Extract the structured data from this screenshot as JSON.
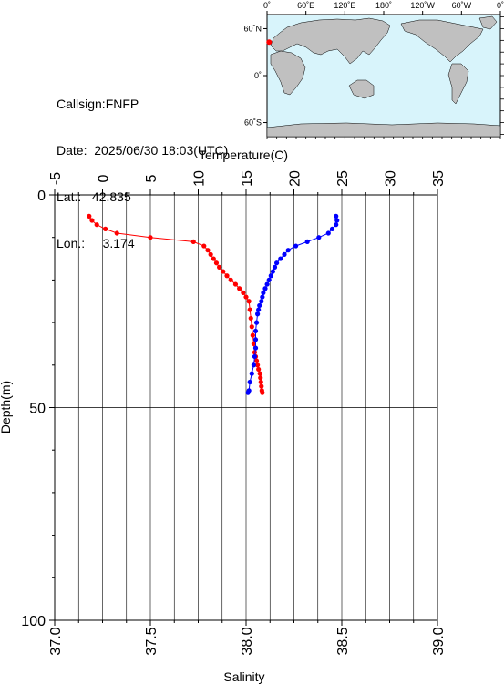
{
  "header": {
    "callsign_label": "Callsign:",
    "callsign": "FNFP",
    "date_label": "Date:",
    "date": "2025/06/30 18:03(UTC)",
    "lat_label": "Lat.:",
    "lat": "42.835",
    "lon_label": "Lon.:",
    "lon": "3.174"
  },
  "map": {
    "lon_ticks": [
      "0˚",
      "60˚E",
      "120˚E",
      "180˚",
      "120˚W",
      "60˚W",
      "0˚"
    ],
    "lat_ticks": [
      "60˚N",
      "0˚",
      "60˚S"
    ],
    "ocean_color": "#d8f4fb",
    "land_color": "#c0c0c0",
    "marker_color": "#ff0000",
    "station_lon": 3.174,
    "station_lat": 42.835
  },
  "chart_data": {
    "type": "line",
    "xlabel_top": "Temperature(C)",
    "xlabel_bottom": "Salinity",
    "ylabel": "Depth(m)",
    "temperature_ticks": [
      "-5",
      "0",
      "5",
      "10",
      "15",
      "20",
      "25",
      "30",
      "35"
    ],
    "salinity_ticks": [
      "37.0",
      "37.5",
      "38.0",
      "38.5",
      "39.0"
    ],
    "depth_ticks": [
      "0",
      "50",
      "100"
    ],
    "temperature_range": [
      -5,
      35
    ],
    "salinity_range": [
      37.0,
      39.0
    ],
    "depth_range": [
      0,
      100
    ],
    "series": [
      {
        "color": "#ff0000",
        "axis": "temperature",
        "points": [
          {
            "depth": 5.0,
            "value": -1.4
          },
          {
            "depth": 6.0,
            "value": -1.1
          },
          {
            "depth": 7.0,
            "value": -0.6
          },
          {
            "depth": 8.0,
            "value": 0.3
          },
          {
            "depth": 9.0,
            "value": 1.5
          },
          {
            "depth": 10.0,
            "value": 5.0
          },
          {
            "depth": 11.0,
            "value": 9.5
          },
          {
            "depth": 12.0,
            "value": 10.6
          },
          {
            "depth": 13.0,
            "value": 11.0
          },
          {
            "depth": 14.0,
            "value": 11.3
          },
          {
            "depth": 15.0,
            "value": 11.6
          },
          {
            "depth": 16.0,
            "value": 11.9
          },
          {
            "depth": 17.0,
            "value": 12.2
          },
          {
            "depth": 18.0,
            "value": 12.6
          },
          {
            "depth": 19.0,
            "value": 13.0
          },
          {
            "depth": 20.0,
            "value": 13.4
          },
          {
            "depth": 21.0,
            "value": 13.9
          },
          {
            "depth": 22.0,
            "value": 14.3
          },
          {
            "depth": 23.0,
            "value": 14.7
          },
          {
            "depth": 24.0,
            "value": 15.0
          },
          {
            "depth": 25.0,
            "value": 15.3
          },
          {
            "depth": 27.0,
            "value": 15.4
          },
          {
            "depth": 29.0,
            "value": 15.5
          },
          {
            "depth": 31.0,
            "value": 15.6
          },
          {
            "depth": 33.0,
            "value": 15.7
          },
          {
            "depth": 35.0,
            "value": 15.8
          },
          {
            "depth": 37.0,
            "value": 15.9
          },
          {
            "depth": 38.0,
            "value": 16.0
          },
          {
            "depth": 39.0,
            "value": 16.1
          },
          {
            "depth": 40.0,
            "value": 16.2
          },
          {
            "depth": 41.0,
            "value": 16.3
          },
          {
            "depth": 42.0,
            "value": 16.45
          },
          {
            "depth": 43.0,
            "value": 16.5
          },
          {
            "depth": 44.0,
            "value": 16.55
          },
          {
            "depth": 45.0,
            "value": 16.6
          },
          {
            "depth": 46.0,
            "value": 16.65
          },
          {
            "depth": 46.5,
            "value": 16.7
          }
        ]
      },
      {
        "color": "#0000ff",
        "axis": "salinity",
        "points": [
          {
            "depth": 5.0,
            "value": 38.47
          },
          {
            "depth": 6.0,
            "value": 38.475
          },
          {
            "depth": 7.0,
            "value": 38.47
          },
          {
            "depth": 8.0,
            "value": 38.45
          },
          {
            "depth": 9.0,
            "value": 38.43
          },
          {
            "depth": 10.0,
            "value": 38.38
          },
          {
            "depth": 11.0,
            "value": 38.32
          },
          {
            "depth": 12.0,
            "value": 38.26
          },
          {
            "depth": 13.0,
            "value": 38.22
          },
          {
            "depth": 14.0,
            "value": 38.2
          },
          {
            "depth": 15.0,
            "value": 38.18
          },
          {
            "depth": 16.0,
            "value": 38.16
          },
          {
            "depth": 17.0,
            "value": 38.15
          },
          {
            "depth": 18.0,
            "value": 38.14
          },
          {
            "depth": 19.0,
            "value": 38.13
          },
          {
            "depth": 20.0,
            "value": 38.12
          },
          {
            "depth": 21.0,
            "value": 38.11
          },
          {
            "depth": 22.0,
            "value": 38.1
          },
          {
            "depth": 23.0,
            "value": 38.09
          },
          {
            "depth": 24.0,
            "value": 38.085
          },
          {
            "depth": 25.0,
            "value": 38.08
          },
          {
            "depth": 26.0,
            "value": 38.07
          },
          {
            "depth": 27.0,
            "value": 38.065
          },
          {
            "depth": 28.0,
            "value": 38.06
          },
          {
            "depth": 30.0,
            "value": 38.055
          },
          {
            "depth": 32.0,
            "value": 38.05
          },
          {
            "depth": 34.0,
            "value": 38.05
          },
          {
            "depth": 36.0,
            "value": 38.05
          },
          {
            "depth": 38.0,
            "value": 38.045
          },
          {
            "depth": 40.0,
            "value": 38.04
          },
          {
            "depth": 42.0,
            "value": 38.03
          },
          {
            "depth": 44.0,
            "value": 38.02
          },
          {
            "depth": 46.0,
            "value": 38.015
          },
          {
            "depth": 46.5,
            "value": 38.01
          }
        ]
      }
    ]
  }
}
